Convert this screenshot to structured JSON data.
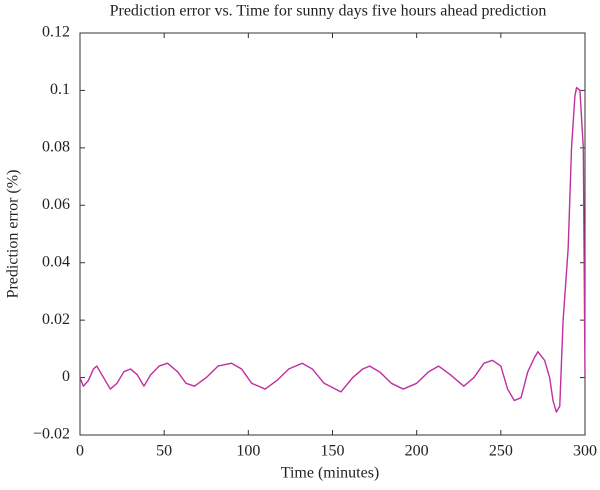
{
  "chart_data": {
    "type": "line",
    "title": "Prediction error vs. Time for sunny days five hours ahead prediction",
    "xlabel": "Time (minutes)",
    "ylabel": "Prediction error (%)",
    "x": [
      0,
      2,
      5,
      8,
      10,
      12,
      15,
      18,
      22,
      26,
      30,
      34,
      38,
      42,
      47,
      52,
      58,
      63,
      68,
      75,
      82,
      90,
      96,
      102,
      110,
      117,
      124,
      132,
      138,
      145,
      155,
      162,
      168,
      172,
      178,
      185,
      192,
      200,
      207,
      213,
      220,
      228,
      234,
      240,
      245,
      250,
      254,
      258,
      262,
      266,
      270,
      272,
      276,
      279,
      281,
      283,
      285,
      287,
      290,
      292,
      294,
      295,
      297,
      299,
      300
    ],
    "series": [
      {
        "name": "Prediction error",
        "color": "#bf2fa0",
        "values": [
          0,
          -0.003,
          -0.001,
          0.003,
          0.004,
          0.002,
          -0.001,
          -0.004,
          -0.002,
          0.002,
          0.003,
          0.001,
          -0.003,
          0.001,
          0.004,
          0.005,
          0.002,
          -0.002,
          -0.003,
          0,
          0.004,
          0.005,
          0.003,
          -0.002,
          -0.004,
          -0.001,
          0.003,
          0.005,
          0.003,
          -0.002,
          -0.005,
          0,
          0.003,
          0.004,
          0.002,
          -0.002,
          -0.004,
          -0.002,
          0.002,
          0.004,
          0.001,
          -0.003,
          0,
          0.005,
          0.006,
          0.004,
          -0.004,
          -0.008,
          -0.007,
          0.002,
          0.007,
          0.009,
          0.006,
          0,
          -0.008,
          -0.012,
          -0.01,
          0.02,
          0.045,
          0.08,
          0.098,
          0.101,
          0.1,
          0.08,
          0
        ]
      }
    ],
    "xlim": [
      0,
      300
    ],
    "xticks": [
      0,
      50,
      100,
      150,
      200,
      250,
      300
    ],
    "ylim": [
      -0.02,
      0.12
    ],
    "yticks": [
      {
        "value": -0.02,
        "label": "−0.02"
      },
      0,
      0.02,
      0.04,
      0.06,
      0.08,
      0.1,
      0.12
    ]
  }
}
